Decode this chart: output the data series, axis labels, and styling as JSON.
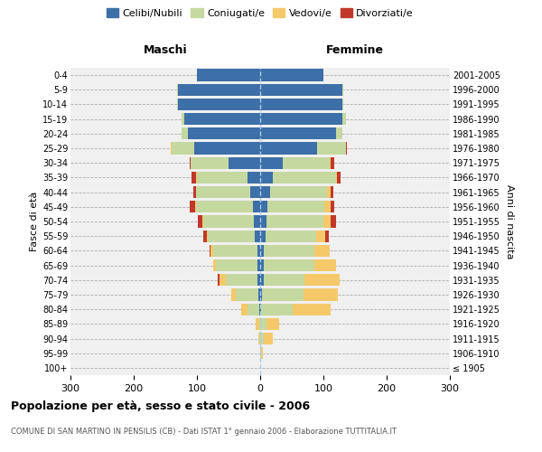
{
  "age_groups": [
    "100+",
    "95-99",
    "90-94",
    "85-89",
    "80-84",
    "75-79",
    "70-74",
    "65-69",
    "60-64",
    "55-59",
    "50-54",
    "45-49",
    "40-44",
    "35-39",
    "30-34",
    "25-29",
    "20-24",
    "15-19",
    "10-14",
    "5-9",
    "0-4"
  ],
  "birth_years": [
    "≤ 1905",
    "1906-1910",
    "1911-1915",
    "1916-1920",
    "1921-1925",
    "1926-1930",
    "1931-1935",
    "1936-1940",
    "1941-1945",
    "1946-1950",
    "1951-1955",
    "1956-1960",
    "1961-1965",
    "1966-1970",
    "1971-1975",
    "1976-1980",
    "1981-1985",
    "1986-1990",
    "1991-1995",
    "1996-2000",
    "2001-2005"
  ],
  "maschi": {
    "celibi": [
      0,
      0,
      0,
      0,
      2,
      3,
      4,
      5,
      5,
      8,
      10,
      12,
      16,
      20,
      50,
      105,
      115,
      120,
      130,
      130,
      100
    ],
    "coniugati": [
      0,
      0,
      1,
      2,
      18,
      35,
      50,
      65,
      70,
      75,
      80,
      90,
      85,
      80,
      60,
      35,
      10,
      5,
      2,
      1,
      0
    ],
    "vedovi": [
      0,
      0,
      2,
      5,
      10,
      8,
      10,
      5,
      4,
      2,
      2,
      1,
      1,
      1,
      0,
      1,
      0,
      0,
      0,
      0,
      0
    ],
    "divorziati": [
      0,
      0,
      0,
      0,
      0,
      0,
      3,
      0,
      1,
      5,
      7,
      8,
      4,
      8,
      2,
      1,
      0,
      0,
      0,
      0,
      0
    ]
  },
  "femmine": {
    "nubili": [
      0,
      0,
      0,
      0,
      2,
      3,
      5,
      5,
      5,
      8,
      10,
      12,
      16,
      20,
      35,
      90,
      120,
      130,
      130,
      130,
      100
    ],
    "coniugate": [
      0,
      2,
      5,
      10,
      50,
      65,
      65,
      80,
      80,
      80,
      90,
      90,
      90,
      100,
      75,
      45,
      10,
      5,
      2,
      1,
      0
    ],
    "vedove": [
      0,
      2,
      15,
      20,
      60,
      55,
      55,
      35,
      25,
      15,
      12,
      10,
      5,
      2,
      2,
      1,
      0,
      0,
      0,
      0,
      0
    ],
    "divorziate": [
      0,
      0,
      0,
      0,
      0,
      0,
      0,
      0,
      0,
      5,
      8,
      5,
      5,
      5,
      5,
      1,
      0,
      0,
      0,
      0,
      0
    ]
  },
  "colors": {
    "celibi": "#3d6fa8",
    "coniugati": "#c5d8a0",
    "vedovi": "#f5c96a",
    "divorziati": "#c0392b"
  },
  "xlim": 300,
  "title": "Popolazione per età, sesso e stato civile - 2006",
  "subtitle": "COMUNE DI SAN MARTINO IN PENSILIS (CB) - Dati ISTAT 1° gennaio 2006 - Elaborazione TUTTITALIA.IT",
  "ylabel_left": "Fasce di età",
  "ylabel_right": "Anni di nascita",
  "legend_labels": [
    "Celibi/Nubili",
    "Coniugati/e",
    "Vedovi/e",
    "Divorziati/e"
  ]
}
